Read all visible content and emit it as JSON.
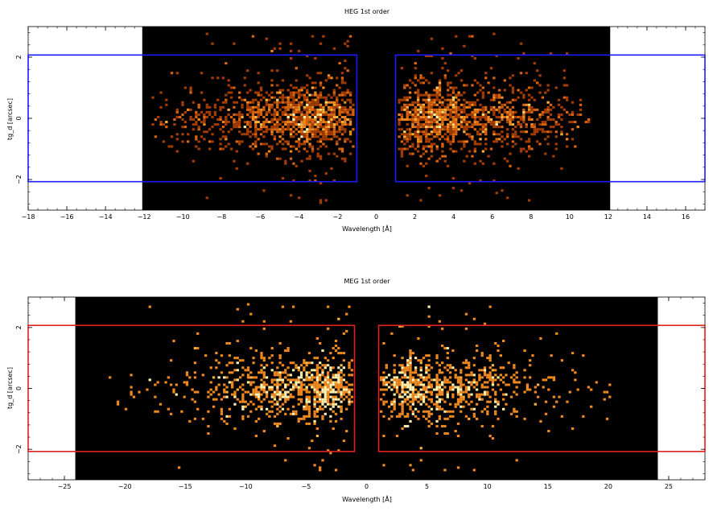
{
  "chart_data": [
    {
      "type": "heatmap",
      "title": "HEG 1st order",
      "xlabel": "Wavelength [Å]",
      "ylabel": "tg_d [arcsec]",
      "xlim": [
        -18,
        17
      ],
      "ylim": [
        -3.0,
        3.0
      ],
      "x_ticks": [
        -18,
        -16,
        -14,
        -12,
        -10,
        -8,
        -6,
        -4,
        -2,
        0,
        2,
        4,
        6,
        8,
        10,
        12,
        14,
        16
      ],
      "y_ticks": [
        -2,
        0,
        2
      ],
      "data_region_x": [
        -12.1,
        12.1
      ],
      "extraction_regions": [
        {
          "x": [
            -18,
            -1.0
          ],
          "y": [
            -2.07,
            2.07
          ]
        },
        {
          "x": [
            1.0,
            17
          ],
          "y": [
            -2.07,
            2.07
          ]
        }
      ],
      "region_color": "#1a1aff",
      "clusters": [
        {
          "x_center": -3.0,
          "x_spread": 1.6,
          "y_spread": 0.55,
          "weight": 1.0
        },
        {
          "x_center": -6.5,
          "x_spread": 2.5,
          "y_spread": 0.55,
          "weight": 0.7
        },
        {
          "x_center": 2.8,
          "x_spread": 1.2,
          "y_spread": 0.55,
          "weight": 1.0
        },
        {
          "x_center": 6.8,
          "x_spread": 2.0,
          "y_spread": 0.55,
          "weight": 0.7
        }
      ],
      "data_x_range": [
        -11.5,
        11.0
      ],
      "grid": false
    },
    {
      "type": "heatmap",
      "title": "MEG 1st order",
      "xlabel": "Wavelength [Å]",
      "ylabel": "tg_d [arcsec]",
      "xlim": [
        -28,
        28
      ],
      "ylim": [
        -3.0,
        3.0
      ],
      "x_ticks": [
        -25,
        -20,
        -15,
        -10,
        -5,
        0,
        5,
        10,
        15,
        20,
        25
      ],
      "y_ticks": [
        -2,
        0,
        2
      ],
      "data_region_x": [
        -24.1,
        24.1
      ],
      "extraction_regions": [
        {
          "x": [
            -28,
            -1.0
          ],
          "y": [
            -2.07,
            2.07
          ]
        },
        {
          "x": [
            1.0,
            28
          ],
          "y": [
            -2.07,
            2.07
          ]
        }
      ],
      "region_color": "#e02020",
      "clusters": [
        {
          "x_center": -3.0,
          "x_spread": 1.5,
          "y_spread": 0.5,
          "weight": 1.0
        },
        {
          "x_center": -7.5,
          "x_spread": 2.5,
          "y_spread": 0.55,
          "weight": 1.0
        },
        {
          "x_center": -12.0,
          "x_spread": 4.0,
          "y_spread": 0.6,
          "weight": 0.4
        },
        {
          "x_center": 3.0,
          "x_spread": 1.5,
          "y_spread": 0.5,
          "weight": 1.0
        },
        {
          "x_center": 7.5,
          "x_spread": 2.5,
          "y_spread": 0.55,
          "weight": 1.0
        },
        {
          "x_center": 13.0,
          "x_spread": 4.0,
          "y_spread": 0.6,
          "weight": 0.35
        }
      ],
      "data_x_range": [
        -23.0,
        20.5
      ],
      "grid": false
    }
  ]
}
